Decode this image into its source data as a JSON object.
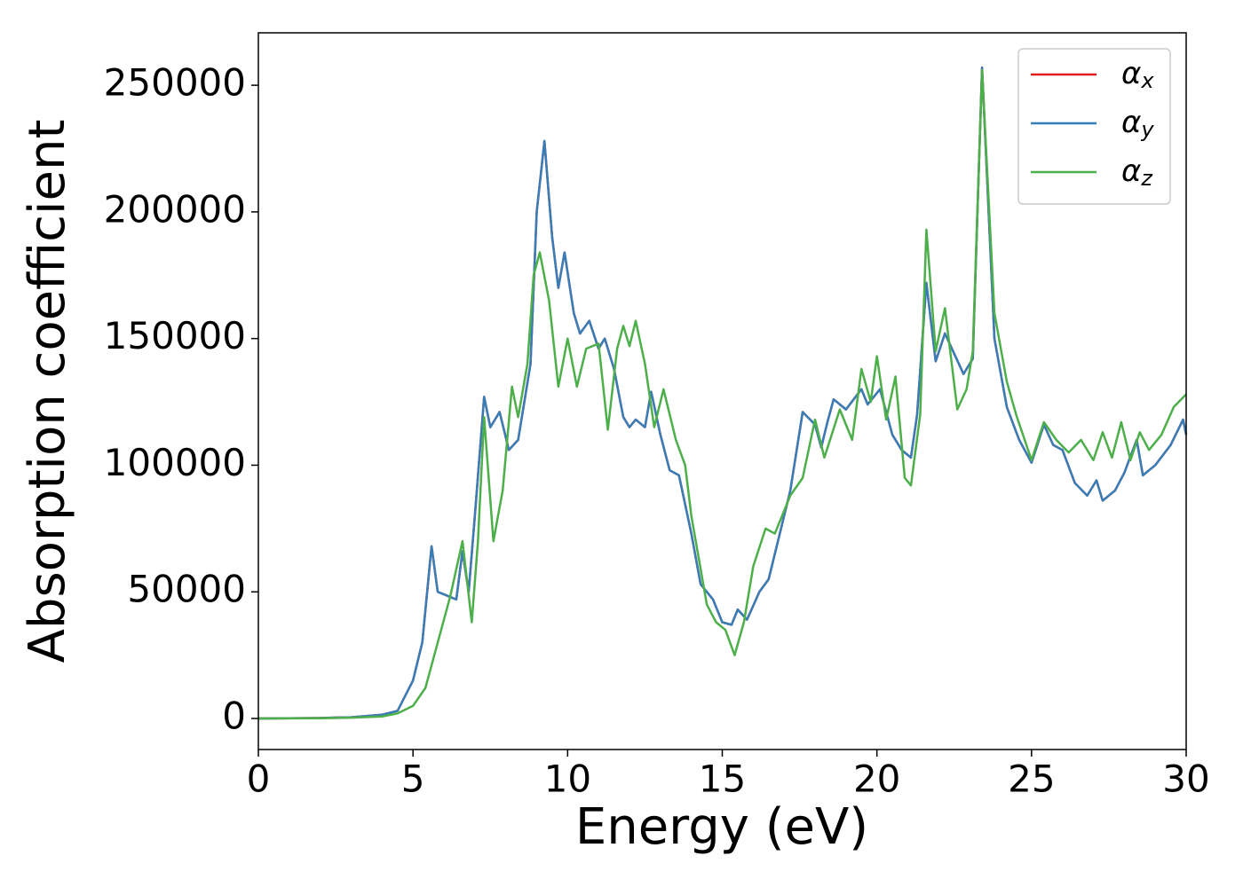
{
  "chart_data": {
    "type": "line",
    "xlabel": "Energy (eV)",
    "ylabel": "Absorption coefficient",
    "xlim": [
      0,
      30
    ],
    "ylim": [
      -12250,
      270700
    ],
    "xticks": [
      0,
      5,
      10,
      15,
      20,
      25,
      30
    ],
    "yticks": [
      0,
      50000,
      100000,
      150000,
      200000,
      250000
    ],
    "legend": "upper right",
    "series": [
      {
        "name": "αx",
        "color": "#e41a1c",
        "x": [
          0,
          2,
          3,
          4,
          4.5,
          5,
          5.3,
          5.6,
          5.8,
          6.2,
          6.4,
          6.6,
          6.8,
          7.0,
          7.3,
          7.5,
          7.8,
          8.1,
          8.4,
          8.8,
          9.0,
          9.25,
          9.5,
          9.7,
          9.9,
          10.2,
          10.4,
          10.7,
          11.0,
          11.2,
          11.5,
          11.8,
          12.0,
          12.2,
          12.5,
          12.7,
          13.0,
          13.3,
          13.6,
          14.0,
          14.3,
          14.7,
          15.0,
          15.3,
          15.5,
          15.8,
          16.2,
          16.5,
          16.8,
          17.2,
          17.6,
          18.0,
          18.2,
          18.4,
          18.6,
          19.0,
          19.5,
          19.7,
          20.1,
          20.5,
          20.8,
          21.1,
          21.3,
          21.6,
          21.9,
          22.2,
          22.5,
          22.8,
          23.1,
          23.4,
          23.8,
          24.2,
          24.6,
          25.0,
          25.4,
          25.7,
          26.0,
          26.4,
          26.8,
          27.1,
          27.3,
          27.7,
          28.0,
          28.4,
          28.6,
          29.0,
          29.5,
          29.9,
          30.0
        ],
        "values": [
          0,
          200,
          500,
          1500,
          3000,
          15000,
          30000,
          68000,
          50000,
          48000,
          47000,
          66000,
          50000,
          80000,
          127000,
          115000,
          121000,
          106000,
          110000,
          140000,
          200000,
          228000,
          190000,
          170000,
          184000,
          160000,
          152000,
          157000,
          146000,
          150000,
          138000,
          119000,
          115000,
          118000,
          115000,
          129000,
          112000,
          98000,
          96000,
          73000,
          53000,
          47000,
          38000,
          37000,
          43000,
          39000,
          50000,
          55000,
          70000,
          90000,
          121000,
          116000,
          107000,
          117000,
          126000,
          122000,
          130000,
          124000,
          130000,
          112000,
          106000,
          103000,
          120000,
          172000,
          141000,
          152000,
          144000,
          136000,
          142000,
          257000,
          150000,
          123000,
          110000,
          101000,
          116000,
          108000,
          106000,
          93000,
          88000,
          94000,
          86000,
          90000,
          97000,
          110000,
          96000,
          100000,
          108000,
          118000,
          112000
        ]
      },
      {
        "name": "αy",
        "color": "#377eb8",
        "x": [
          0,
          2,
          3,
          4,
          4.5,
          5,
          5.3,
          5.6,
          5.8,
          6.2,
          6.4,
          6.6,
          6.8,
          7.0,
          7.3,
          7.5,
          7.8,
          8.1,
          8.4,
          8.8,
          9.0,
          9.25,
          9.5,
          9.7,
          9.9,
          10.2,
          10.4,
          10.7,
          11.0,
          11.2,
          11.5,
          11.8,
          12.0,
          12.2,
          12.5,
          12.7,
          13.0,
          13.3,
          13.6,
          14.0,
          14.3,
          14.7,
          15.0,
          15.3,
          15.5,
          15.8,
          16.2,
          16.5,
          16.8,
          17.2,
          17.6,
          18.0,
          18.2,
          18.4,
          18.6,
          19.0,
          19.5,
          19.7,
          20.1,
          20.5,
          20.8,
          21.1,
          21.3,
          21.6,
          21.9,
          22.2,
          22.5,
          22.8,
          23.1,
          23.4,
          23.8,
          24.2,
          24.6,
          25.0,
          25.4,
          25.7,
          26.0,
          26.4,
          26.8,
          27.1,
          27.3,
          27.7,
          28.0,
          28.4,
          28.6,
          29.0,
          29.5,
          29.9,
          30.0
        ],
        "values": [
          0,
          200,
          500,
          1500,
          3000,
          15000,
          30000,
          68000,
          50000,
          48000,
          47000,
          66000,
          50000,
          80000,
          127000,
          115000,
          121000,
          106000,
          110000,
          140000,
          200000,
          228000,
          190000,
          170000,
          184000,
          160000,
          152000,
          157000,
          146000,
          150000,
          138000,
          119000,
          115000,
          118000,
          115000,
          129000,
          112000,
          98000,
          96000,
          73000,
          53000,
          47000,
          38000,
          37000,
          43000,
          39000,
          50000,
          55000,
          70000,
          90000,
          121000,
          116000,
          107000,
          117000,
          126000,
          122000,
          130000,
          124000,
          130000,
          112000,
          106000,
          103000,
          120000,
          172000,
          141000,
          152000,
          144000,
          136000,
          142000,
          257000,
          150000,
          123000,
          110000,
          101000,
          116000,
          108000,
          106000,
          93000,
          88000,
          94000,
          86000,
          90000,
          97000,
          110000,
          96000,
          100000,
          108000,
          118000,
          112000
        ]
      },
      {
        "name": "αz",
        "color": "#4daf4a",
        "x": [
          0,
          2,
          3,
          4,
          4.5,
          5,
          5.4,
          5.8,
          6.2,
          6.6,
          6.9,
          7.1,
          7.3,
          7.6,
          7.9,
          8.2,
          8.4,
          8.7,
          8.9,
          9.1,
          9.4,
          9.7,
          10.0,
          10.3,
          10.6,
          11.0,
          11.3,
          11.6,
          11.8,
          12.0,
          12.2,
          12.5,
          12.8,
          13.1,
          13.5,
          13.8,
          14.0,
          14.5,
          14.8,
          15.1,
          15.4,
          15.7,
          16.0,
          16.4,
          16.7,
          17.2,
          17.6,
          18.0,
          18.3,
          18.8,
          19.2,
          19.5,
          19.8,
          20.0,
          20.3,
          20.6,
          20.9,
          21.1,
          21.4,
          21.6,
          21.9,
          22.2,
          22.6,
          22.9,
          23.1,
          23.4,
          23.8,
          24.2,
          24.5,
          25.0,
          25.4,
          25.8,
          26.2,
          26.6,
          27.0,
          27.3,
          27.6,
          27.9,
          28.2,
          28.5,
          28.8,
          29.2,
          29.6,
          30.0
        ],
        "values": [
          0,
          100,
          300,
          800,
          2000,
          5000,
          12000,
          30000,
          48000,
          70000,
          38000,
          70000,
          119000,
          70000,
          90000,
          131000,
          119000,
          140000,
          175000,
          184000,
          165000,
          131000,
          150000,
          131000,
          146000,
          148000,
          114000,
          146000,
          155000,
          147000,
          157000,
          140000,
          115000,
          130000,
          110000,
          100000,
          80000,
          45000,
          38000,
          35000,
          25000,
          38000,
          60000,
          75000,
          73000,
          88000,
          95000,
          118000,
          103000,
          122000,
          110000,
          138000,
          125000,
          143000,
          118000,
          135000,
          95000,
          92000,
          120000,
          193000,
          145000,
          162000,
          122000,
          130000,
          145000,
          256000,
          160000,
          133000,
          120000,
          102000,
          117000,
          110000,
          105000,
          110000,
          102000,
          113000,
          103000,
          117000,
          102000,
          113000,
          106000,
          112000,
          123000,
          128000
        ]
      }
    ]
  }
}
